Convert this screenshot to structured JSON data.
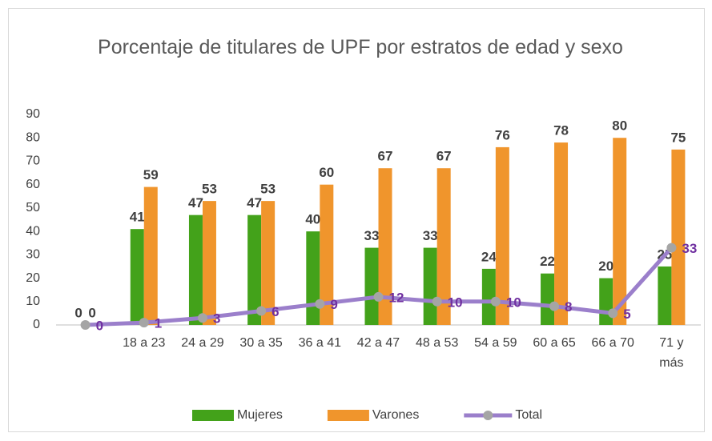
{
  "chart_data": {
    "type": "bar",
    "title": "Porcentaje de titulares de UPF por estratos de edad y sexo",
    "categories": [
      null,
      "18 a 23",
      "24 a 29",
      "30 a 35",
      "36 a 41",
      "42 a 47",
      "48 a 53",
      "54 a 59",
      "60 a 65",
      "66 a 70",
      "71 y más"
    ],
    "series": [
      {
        "name": "Mujeres",
        "type": "bar",
        "color": "#43a21a",
        "values": [
          0,
          41,
          47,
          47,
          40,
          33,
          33,
          24,
          22,
          20,
          25
        ]
      },
      {
        "name": "Varones",
        "type": "bar",
        "color": "#f0952c",
        "values": [
          0,
          59,
          53,
          53,
          60,
          67,
          67,
          76,
          78,
          80,
          75
        ]
      },
      {
        "name": "Total",
        "type": "line",
        "color": "#9b7fcb",
        "values": [
          0,
          1,
          3,
          6,
          9,
          12,
          10,
          10,
          8,
          5,
          33
        ]
      }
    ],
    "ylim": [
      0,
      90
    ],
    "yticks": [
      0,
      10,
      20,
      30,
      40,
      50,
      60,
      70,
      80,
      90
    ],
    "grid": false,
    "legend": "bottom"
  }
}
